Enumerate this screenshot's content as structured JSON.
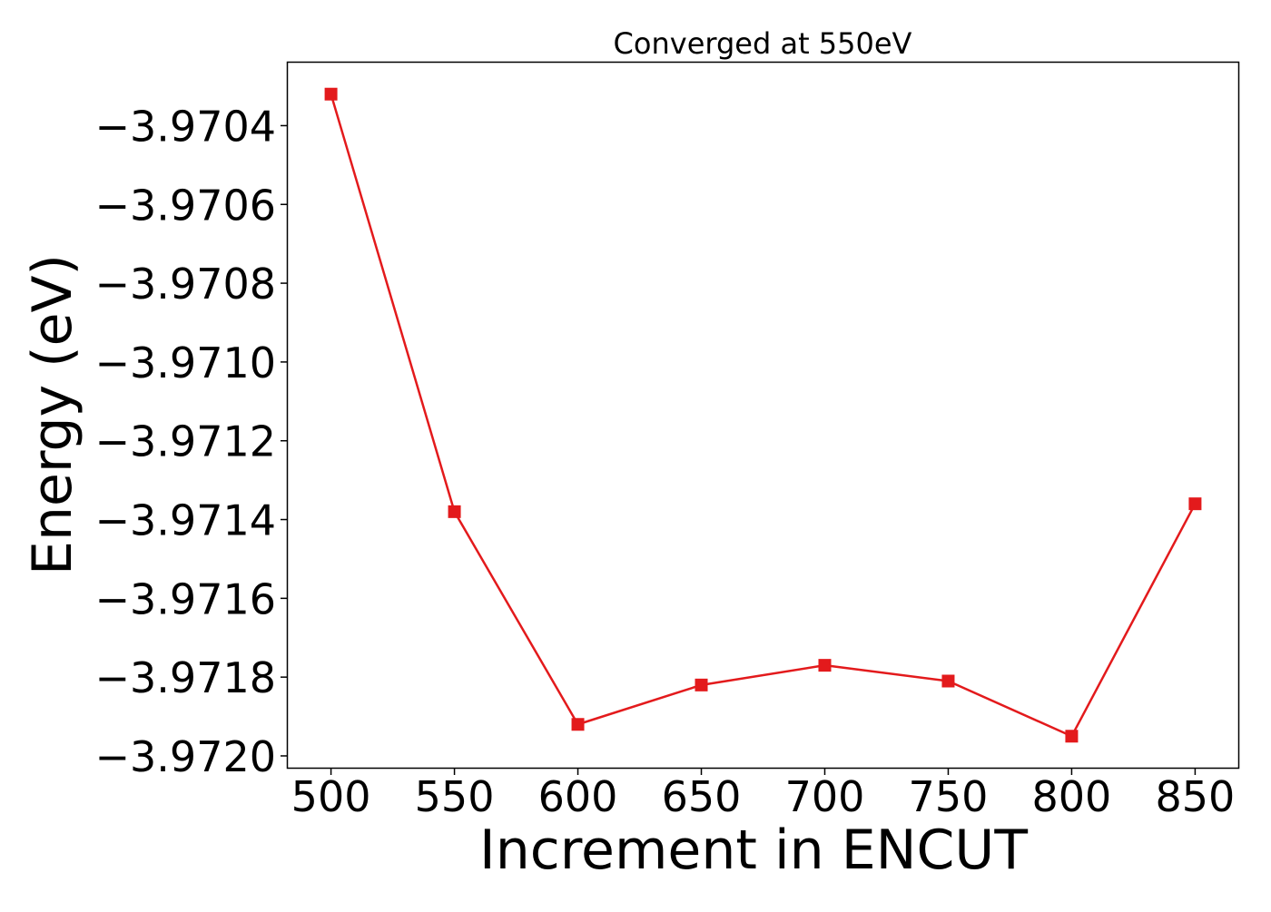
{
  "chart_data": {
    "type": "line",
    "title": "Converged at 550eV",
    "xlabel": "Increment in ENCUT",
    "ylabel": "Energy (eV)",
    "x": [
      500,
      550,
      600,
      650,
      700,
      750,
      800,
      850
    ],
    "series": [
      {
        "values": [
          -3.97032,
          -3.97138,
          -3.97192,
          -3.97182,
          -3.97177,
          -3.97181,
          -3.97195,
          -3.97136
        ],
        "color": "#e31a1c",
        "marker": "square"
      }
    ],
    "xticks": [
      500,
      550,
      600,
      650,
      700,
      750,
      800,
      850
    ],
    "xtick_labels": [
      "500",
      "550",
      "600",
      "650",
      "700",
      "750",
      "800",
      "850"
    ],
    "yticks": [
      -3.9704,
      -3.9706,
      -3.9708,
      -3.971,
      -3.9712,
      -3.9714,
      -3.9716,
      -3.9718,
      -3.972
    ],
    "ytick_labels": [
      "−3.9704",
      "−3.9706",
      "−3.9708",
      "−3.9710",
      "−3.9712",
      "−3.9714",
      "−3.9716",
      "−3.9718",
      "−3.9720"
    ],
    "xlim": [
      482.5,
      867.5
    ],
    "ylim": [
      -3.97203,
      -3.97024
    ],
    "grid": false,
    "legend": "none"
  }
}
